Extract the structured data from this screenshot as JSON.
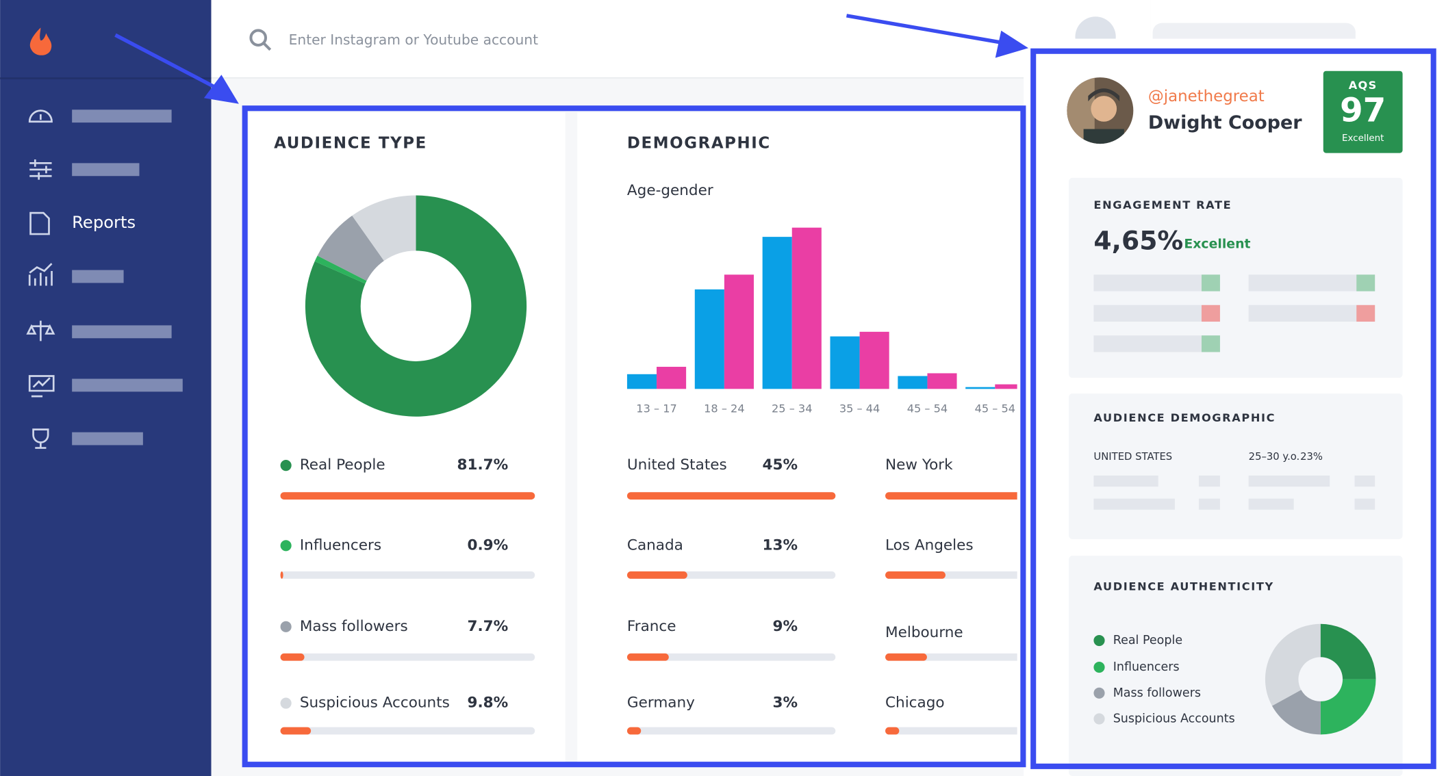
{
  "search": {
    "placeholder": "Enter Instagram or Youtube account"
  },
  "sidebar": {
    "items": [
      "Reports"
    ]
  },
  "audience_type": {
    "type": "pie",
    "title": "AUDIENCE TYPE",
    "categories": [
      "Real People",
      "Influencers",
      "Mass followers",
      "Suspicious Accounts"
    ],
    "values": [
      81.7,
      0.9,
      7.7,
      9.8
    ],
    "value_labels": [
      "81.7%",
      "0.9%",
      "7.7%",
      "9.8%"
    ],
    "colors": [
      "#289150",
      "#2db35d",
      "#9aa1ab",
      "#d5d9de"
    ],
    "bar_color": "#f7693b"
  },
  "demographic": {
    "title": "DEMOGRAPHIC",
    "age_gender": {
      "type": "bar",
      "title": "Age-gender",
      "categories": [
        "13 – 17",
        "18 – 24",
        "25 – 34",
        "35 – 44",
        "45 – 54",
        "45 – 54"
      ],
      "series": [
        {
          "color": "#0aa0e6",
          "values": [
            1.6,
            10.8,
            16.5,
            5.7,
            1.4,
            0.2
          ]
        },
        {
          "color": "#ea3ea4",
          "values": [
            2.4,
            12.4,
            17.5,
            6.2,
            1.7,
            0.5
          ]
        }
      ]
    },
    "countries": {
      "categories": [
        "United States",
        "Canada",
        "France",
        "Germany"
      ],
      "values": [
        45,
        13,
        9,
        3
      ],
      "value_labels": [
        "45%",
        "13%",
        "9%",
        "3%"
      ]
    },
    "cities": {
      "categories": [
        "New York",
        "Los Angeles",
        "Melbourne",
        "Chicago"
      ],
      "values": [
        45,
        13,
        9,
        3
      ]
    },
    "bar_color": "#f7693b"
  },
  "profile": {
    "handle": "@janethegreat",
    "name": "Dwight Cooper",
    "aqs_label": "AQS",
    "aqs": 97,
    "aqs_rating": "Excellent"
  },
  "engagement": {
    "title": "ENGAGEMENT RATE",
    "rate": "4,65%",
    "rating": "Excellent"
  },
  "audience_demographic": {
    "title": "AUDIENCE DEMOGRAPHIC",
    "country": "UNITED STATES",
    "age": "25–30 y.o.",
    "age_share": "23%"
  },
  "authenticity": {
    "type": "pie",
    "title": "AUDIENCE AUTHENTICITY",
    "categories": [
      "Real People",
      "Influencers",
      "Mass followers",
      "Suspicious Accounts"
    ],
    "values": [
      25,
      25,
      17,
      33
    ],
    "colors": [
      "#289150",
      "#2db35d",
      "#9aa1ab",
      "#d5d9de"
    ]
  }
}
